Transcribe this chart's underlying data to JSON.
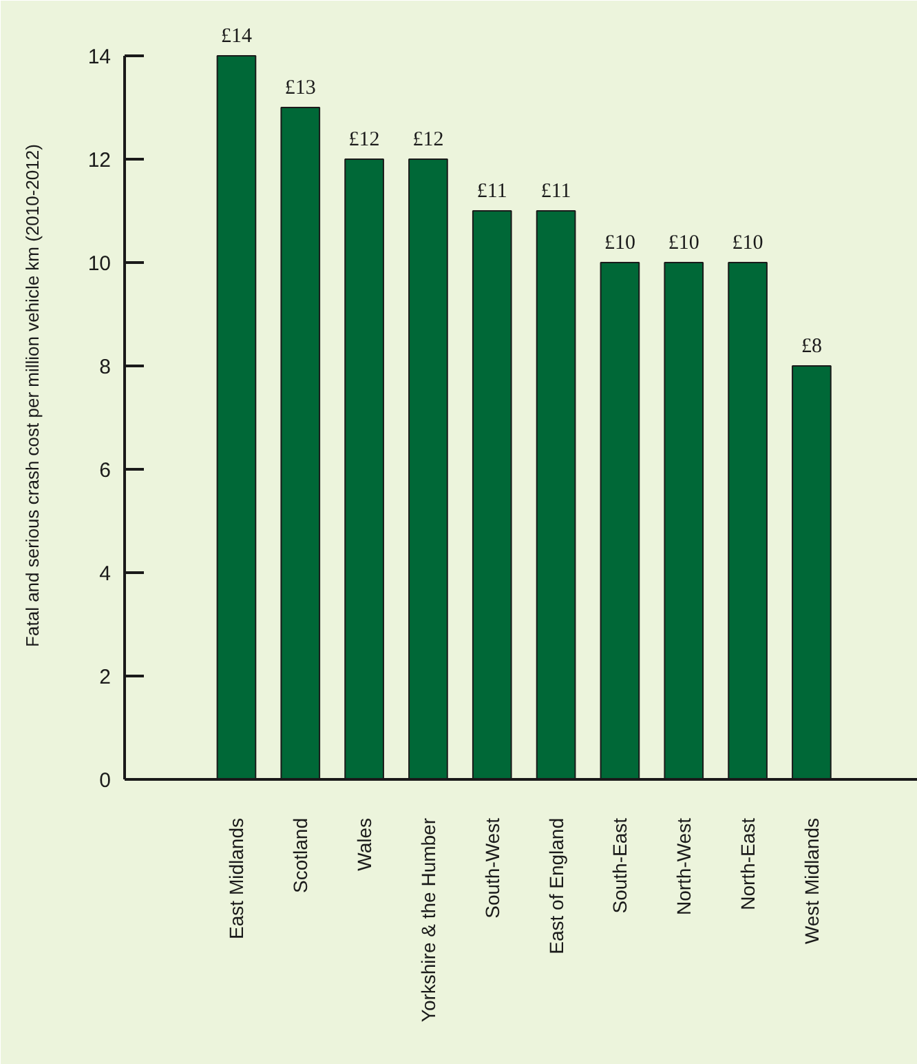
{
  "chart_data": {
    "type": "bar",
    "ylabel": "Fatal and serious crash cost per million vehicle km (2010-2012)",
    "categories": [
      "East Midlands",
      "Scotland",
      "Wales",
      "Yorkshire & the Humber",
      "South-West",
      "East of England",
      "South-East",
      "North-West",
      "North-East",
      "West Midlands"
    ],
    "values": [
      14,
      13,
      12,
      12,
      11,
      11,
      10,
      10,
      10,
      8
    ],
    "value_labels": [
      "£14",
      "£13",
      "£12",
      "£12",
      "£11",
      "£11",
      "£10",
      "£10",
      "£10",
      "£8"
    ],
    "color": "#006837",
    "ylim": [
      0,
      14
    ],
    "yticks": [
      0,
      2,
      4,
      6,
      8,
      10,
      12,
      14
    ]
  }
}
